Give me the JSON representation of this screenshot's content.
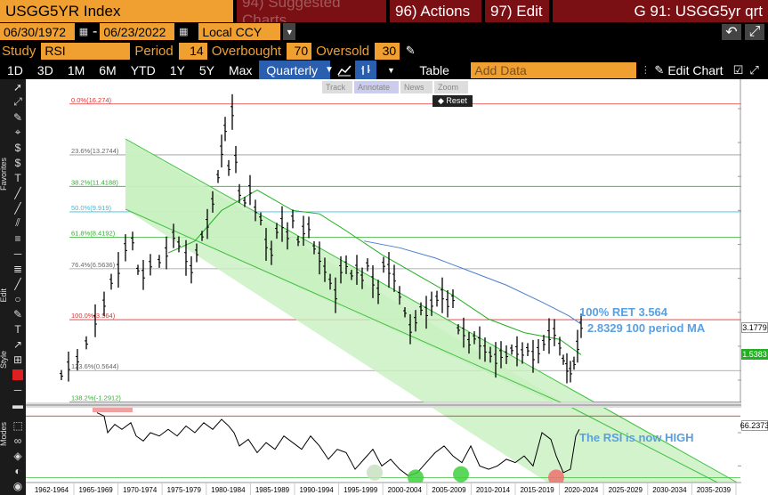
{
  "header": {
    "ticker": "USGG5YR Index",
    "suggested": "94) Suggested Charts",
    "actions": "96) Actions",
    "edit": "97) Edit",
    "window": "G 91: USGG5yr qrt"
  },
  "range": {
    "start": "06/30/1972",
    "end": "06/23/2022",
    "currency": "Local CCY"
  },
  "study": {
    "label": "Study",
    "name": "RSI",
    "period_label": "Period",
    "period": "14",
    "overbought_label": "Overbought",
    "overbought": "70",
    "oversold_label": "Oversold",
    "oversold": "30"
  },
  "periods": [
    "1D",
    "3D",
    "1M",
    "6M",
    "YTD",
    "1Y",
    "5Y",
    "Max"
  ],
  "interval": "Quarterly",
  "table_label": "Table",
  "add_data_placeholder": "Add Data",
  "edit_chart": "Edit Chart",
  "tools": {
    "track": "Track",
    "annotate": "Annotate",
    "news": "News",
    "zoom": "Zoom",
    "reset": "Reset"
  },
  "side_labels": {
    "favorites": "Favorites",
    "edit": "Edit",
    "style": "Style",
    "modes": "Modes"
  },
  "annotations": {
    "ret": "100% RET 3.564",
    "ma": "2.8329 100 period MA",
    "rsi": "The RSI is now HIGH"
  },
  "chart_data": {
    "type": "line",
    "x_categories": [
      "1962-1964",
      "1965-1969",
      "1970-1974",
      "1975-1979",
      "1980-1984",
      "1985-1989",
      "1990-1994",
      "1995-1999",
      "2000-2004",
      "2005-2009",
      "2010-2014",
      "2015-2019",
      "2020-2024",
      "2025-2029",
      "2030-2034",
      "2035-2039"
    ],
    "y_ticks": [
      "16.00",
      "14.00",
      "12.00",
      "10.00",
      "8.00",
      "6.00",
      "4.00",
      "2.00",
      "0.00"
    ],
    "ylim": [
      -2,
      17
    ],
    "last_price": "3.1779",
    "ma_value": "2.8329",
    "other_value": "1.5383",
    "fib_levels": [
      {
        "label": "0.0%(16.274)",
        "value": 16.274,
        "color": "#e03030"
      },
      {
        "label": "23.6%(13.2744)",
        "value": 13.2744,
        "color": "#999999"
      },
      {
        "label": "38.2%(11.4188)",
        "value": 11.4188,
        "color": "#30b030"
      },
      {
        "label": "50.0%(9.919)",
        "value": 9.919,
        "color": "#30c0e0"
      },
      {
        "label": "61.8%(8.4192)",
        "value": 8.4192,
        "color": "#30b030"
      },
      {
        "label": "76.4%(6.5636)",
        "value": 6.5636,
        "color": "#999999"
      },
      {
        "label": "100.0%(3.564)",
        "value": 3.564,
        "color": "#e03030"
      },
      {
        "label": "123.6%(0.5644)",
        "value": 0.5644,
        "color": "#999999"
      },
      {
        "label": "138.2%(-1.2912)",
        "value": -1.2912,
        "color": "#30b030"
      }
    ],
    "rsi": {
      "ticks": [
        "60",
        "40"
      ],
      "ylim": [
        30,
        75
      ],
      "last": "66.2373",
      "overbought": 70,
      "oversold": 30
    }
  }
}
